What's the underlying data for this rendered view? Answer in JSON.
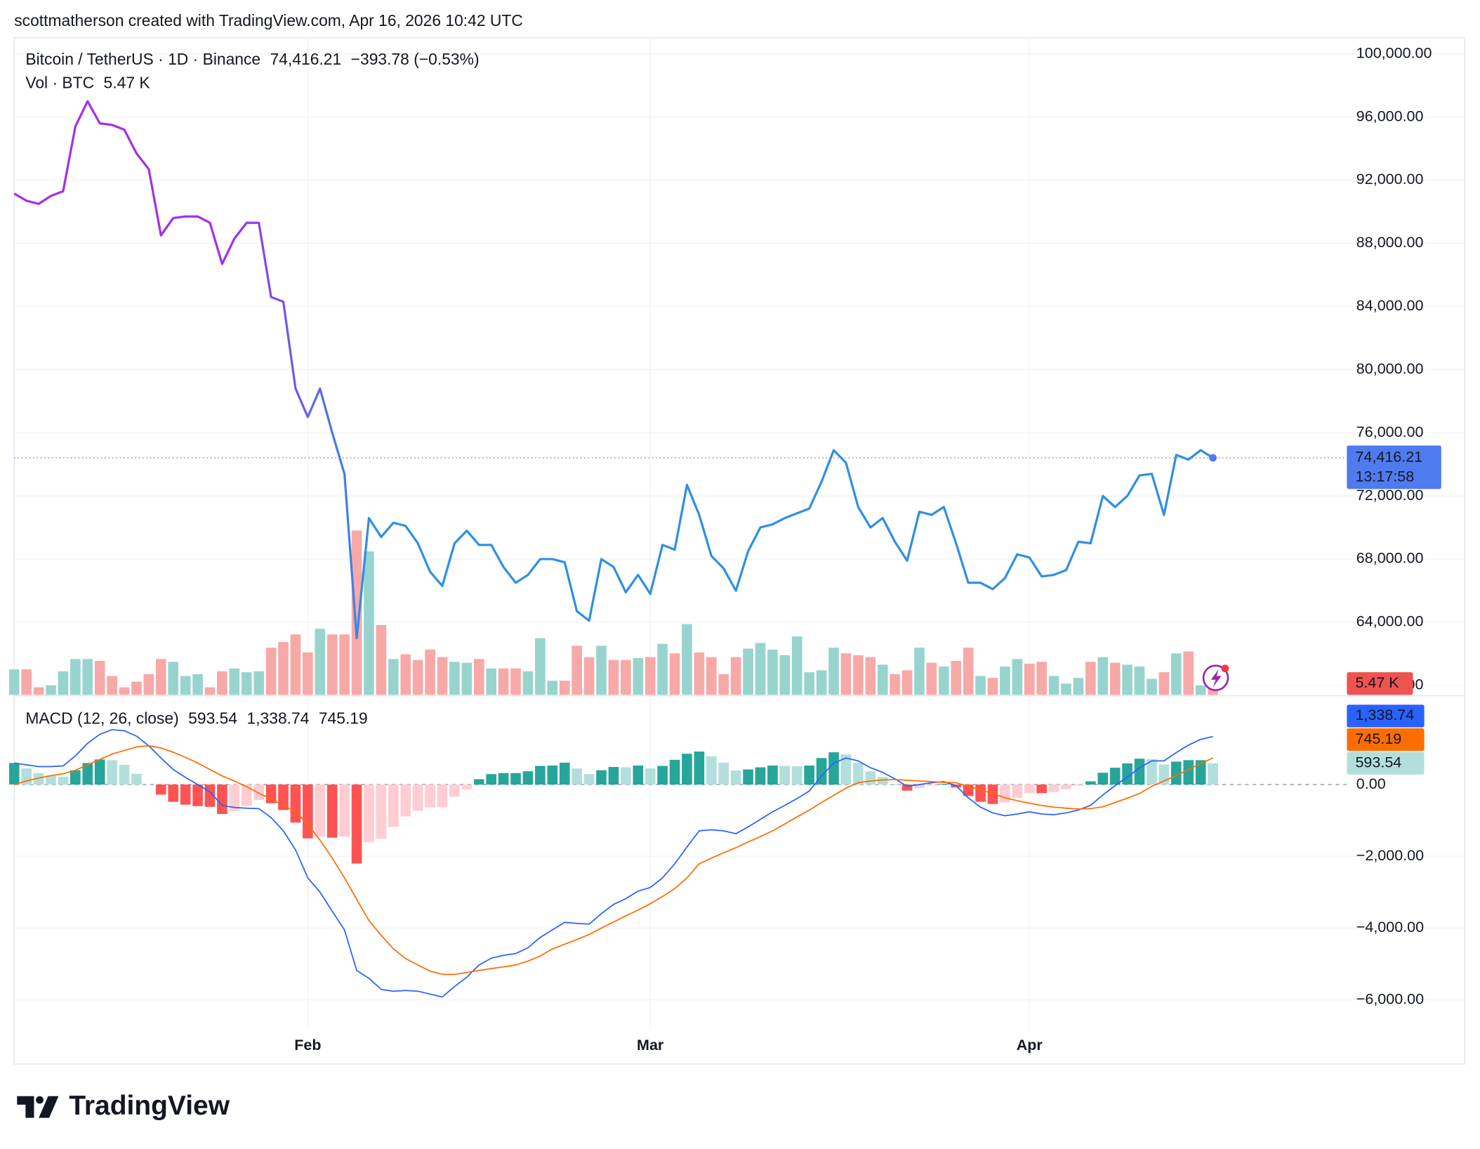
{
  "header": {
    "text": "scottmatherson created with TradingView.com, Apr 16, 2026 10:42 UTC"
  },
  "footer": {
    "logo": "TradingView"
  },
  "chart_data": [
    {
      "type": "line",
      "grid": true,
      "ylim": [
        59400,
        101020
      ],
      "yticks": [
        {
          "value": 60000,
          "label": "60,000.00"
        },
        {
          "value": 64000,
          "label": "64,000.00"
        },
        {
          "value": 68000,
          "label": "68,000.00"
        },
        {
          "value": 72000,
          "label": "72,000.00"
        },
        {
          "value": 76000,
          "label": "76,000.00"
        },
        {
          "value": 80000,
          "label": "80,000.00"
        },
        {
          "value": 84000,
          "label": "84,000.00"
        },
        {
          "value": 88000,
          "label": "88,000.00"
        },
        {
          "value": 92000,
          "label": "92,000.00"
        },
        {
          "value": 96000,
          "label": "96,000.00"
        },
        {
          "value": 100000,
          "label": "100,000.00"
        }
      ],
      "series": [
        {
          "type": "line",
          "name": "Bitcoin / TetherUS · 1D · Binance",
          "color": "#2f8fe5",
          "gradient": [
            "#a230ec",
            "#2f8fe5"
          ],
          "tag_color": "#4f7bef",
          "last_label": "74,416.21",
          "change_label": "−393.78 (−0.53%)",
          "countdown": "13:17:58",
          "values": [
            91150,
            90700,
            90500,
            91000,
            91300,
            95400,
            97000,
            95600,
            95500,
            95200,
            93700,
            92700,
            88500,
            89600,
            89700,
            89700,
            89300,
            86700,
            88300,
            89300,
            89300,
            84600,
            84300,
            78800,
            77000,
            78800,
            76000,
            73400,
            63000,
            70600,
            69400,
            70300,
            70100,
            69000,
            67200,
            66300,
            69000,
            69800,
            68900,
            68900,
            67500,
            66500,
            67000,
            68000,
            68000,
            67800,
            64700,
            64100,
            68000,
            67500,
            65900,
            67000,
            65800,
            68900,
            68600,
            72700,
            70800,
            68200,
            67400,
            66000,
            68500,
            70000,
            70200,
            70600,
            70900,
            71200,
            72900,
            74900,
            74100,
            71300,
            70000,
            70600,
            69100,
            67900,
            71000,
            70800,
            71300,
            69000,
            66500,
            66500,
            66100,
            66800,
            68300,
            68100,
            66900,
            67000,
            67300,
            69100,
            69000,
            72000,
            71300,
            72000,
            73300,
            73400,
            70800,
            74600,
            74300,
            74900,
            74416.21
          ]
        },
        {
          "type": "bar",
          "name": "Vol · BTC",
          "up_color": "#98d4ce",
          "down_color": "#f7a9a7",
          "tag_color": "#ef5350",
          "label_color": "#f23645",
          "last_label": "5.47 K",
          "values": [
            13.5,
            13.5,
            4,
            5,
            12.5,
            19,
            19,
            18,
            10,
            4,
            7,
            11,
            19,
            17.5,
            10,
            11,
            4,
            12.5,
            14,
            12,
            12.5,
            25,
            28,
            32,
            22.5,
            35,
            32,
            32,
            87,
            76,
            37,
            19,
            21.5,
            18.5,
            24,
            20,
            17.5,
            17,
            19,
            14,
            14,
            14,
            12.5,
            30,
            7.5,
            7.5,
            26,
            20,
            26,
            18.5,
            18.5,
            19.5,
            20,
            27,
            22,
            37.5,
            22.5,
            20,
            11,
            20,
            24.5,
            27.5,
            24,
            21,
            31,
            12,
            13,
            25,
            22,
            21,
            20,
            16,
            11,
            13,
            25,
            17,
            15,
            18,
            25,
            10,
            9,
            15,
            19,
            16.5,
            17.5,
            10,
            6,
            9,
            17.5,
            20,
            17,
            16,
            15,
            8.5,
            12,
            22,
            23,
            5,
            5.47
          ]
        }
      ]
    },
    {
      "type": "line",
      "title": "MACD (12, 26, close)",
      "grid": true,
      "zero_line": true,
      "ylim": [
        -6816,
        2447
      ],
      "yticks": [
        {
          "value": 0,
          "label": "0.00"
        },
        {
          "value": -2000,
          "label": "−2,000.00"
        },
        {
          "value": -4000,
          "label": "−4,000.00"
        },
        {
          "value": -6000,
          "label": "−6,000.00"
        }
      ],
      "categories": [
        null,
        null,
        null,
        null,
        null,
        null,
        null,
        null,
        null,
        null,
        null,
        null,
        null,
        null,
        null,
        null,
        null,
        null,
        null,
        null,
        null,
        null,
        null,
        null,
        "Feb",
        null,
        null,
        null,
        null,
        null,
        null,
        null,
        null,
        null,
        null,
        null,
        null,
        null,
        null,
        null,
        null,
        null,
        null,
        null,
        null,
        null,
        null,
        null,
        null,
        null,
        null,
        null,
        "Mar",
        null,
        null,
        null,
        null,
        null,
        null,
        null,
        null,
        null,
        null,
        null,
        null,
        null,
        null,
        null,
        null,
        null,
        null,
        null,
        null,
        null,
        null,
        null,
        null,
        null,
        null,
        null,
        null,
        null,
        null,
        "Apr",
        null,
        null,
        null,
        null,
        null,
        null,
        null,
        null,
        null,
        null,
        null,
        null,
        null,
        null,
        null
      ],
      "series": [
        {
          "type": "histogram",
          "color": "#a6d7d1",
          "tag_color": "#b2dfdb",
          "last_label": "593.54",
          "colors": {
            "up_rising": "#26a69a",
            "up_falling": "#b2dfdb",
            "down_falling": "#ff5252",
            "down_rising": "#ffcdd2"
          },
          "values": [
            600,
            450,
            320,
            250,
            220,
            400,
            600,
            700,
            680,
            550,
            300,
            0,
            -280,
            -480,
            -560,
            -600,
            -620,
            -820,
            -740,
            -600,
            -430,
            -520,
            -710,
            -1060,
            -1500,
            -1450,
            -1480,
            -1450,
            -2200,
            -1610,
            -1510,
            -1180,
            -890,
            -730,
            -640,
            -630,
            -340,
            -130,
            150,
            290,
            320,
            320,
            370,
            520,
            530,
            610,
            450,
            290,
            400,
            490,
            480,
            530,
            450,
            520,
            690,
            860,
            920,
            790,
            610,
            390,
            420,
            480,
            530,
            520,
            510,
            530,
            740,
            900,
            840,
            610,
            370,
            210,
            20,
            -170,
            -100,
            -30,
            20,
            -80,
            -320,
            -480,
            -540,
            -500,
            -370,
            -240,
            -240,
            -210,
            -130,
            -30,
            90,
            330,
            470,
            590,
            720,
            710,
            560,
            640,
            680,
            680,
            593.54
          ]
        },
        {
          "type": "line",
          "color": "#2962ff",
          "tag_color": "#2962ff",
          "last_label": "1,338.74",
          "values": [
            600,
            550,
            500,
            500,
            520,
            800,
            1150,
            1400,
            1530,
            1500,
            1350,
            1080,
            740,
            420,
            200,
            0,
            -200,
            -580,
            -640,
            -660,
            -670,
            -920,
            -1290,
            -1820,
            -2600,
            -3000,
            -3530,
            -4050,
            -5180,
            -5400,
            -5710,
            -5760,
            -5740,
            -5760,
            -5840,
            -5920,
            -5630,
            -5370,
            -5030,
            -4840,
            -4760,
            -4710,
            -4550,
            -4260,
            -4050,
            -3840,
            -3870,
            -3890,
            -3600,
            -3340,
            -3180,
            -2970,
            -2870,
            -2600,
            -2210,
            -1740,
            -1290,
            -1260,
            -1290,
            -1370,
            -1180,
            -970,
            -760,
            -580,
            -390,
            -180,
            240,
            600,
            740,
            660,
            470,
            340,
            160,
            -50,
            0,
            50,
            80,
            -30,
            -370,
            -630,
            -790,
            -870,
            -820,
            -760,
            -820,
            -840,
            -790,
            -710,
            -580,
            -290,
            -30,
            210,
            470,
            660,
            660,
            890,
            1100,
            1260,
            1338.74
          ]
        },
        {
          "type": "line",
          "color": "#ff6d00",
          "tag_color": "#ff6d00",
          "last_label": "745.19",
          "values": [
            0,
            100,
            180,
            250,
            300,
            400,
            550,
            700,
            850,
            950,
            1050,
            1080,
            1020,
            900,
            760,
            600,
            420,
            240,
            100,
            -60,
            -240,
            -400,
            -580,
            -760,
            -1100,
            -1550,
            -2050,
            -2600,
            -3200,
            -3790,
            -4200,
            -4580,
            -4850,
            -5030,
            -5200,
            -5290,
            -5290,
            -5240,
            -5180,
            -5130,
            -5080,
            -5030,
            -4920,
            -4780,
            -4580,
            -4450,
            -4320,
            -4180,
            -4000,
            -3830,
            -3660,
            -3500,
            -3320,
            -3120,
            -2900,
            -2600,
            -2210,
            -2050,
            -1900,
            -1760,
            -1600,
            -1450,
            -1290,
            -1100,
            -900,
            -710,
            -500,
            -300,
            -100,
            50,
            100,
            130,
            140,
            120,
            100,
            80,
            60,
            50,
            -50,
            -150,
            -250,
            -370,
            -450,
            -520,
            -580,
            -630,
            -660,
            -680,
            -670,
            -620,
            -500,
            -380,
            -250,
            -50,
            100,
            250,
            420,
            580,
            745.19
          ]
        }
      ]
    }
  ]
}
